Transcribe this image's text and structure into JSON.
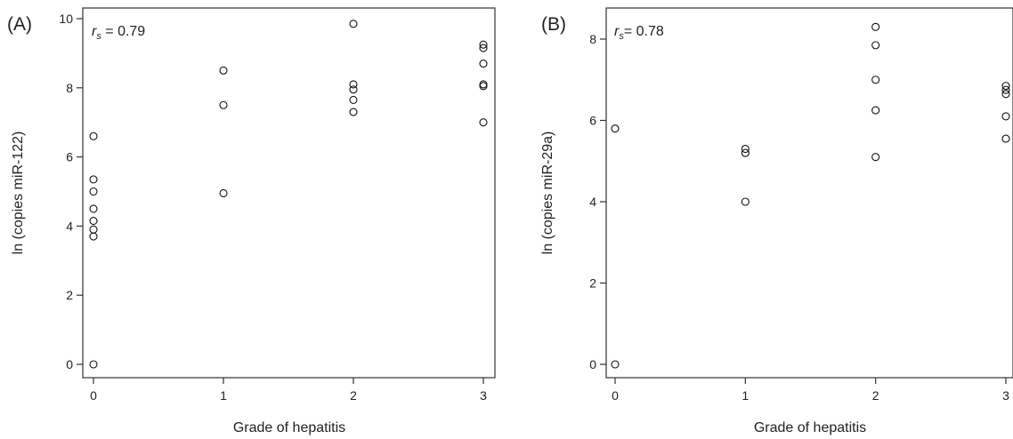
{
  "chart_data": [
    {
      "type": "scatter",
      "panel_label": "(A)",
      "xlabel": "Grade of hepatitis",
      "ylabel": "ln (copies miR-122)",
      "annotation": {
        "symbol": "r",
        "subscript": "s",
        "text": " = 0.79"
      },
      "xlim": [
        0,
        3
      ],
      "ylim": [
        0,
        10
      ],
      "xticks": [
        0,
        1,
        2,
        3
      ],
      "yticks": [
        0,
        2,
        4,
        6,
        8,
        10
      ],
      "grid": false,
      "points": [
        {
          "x": 0,
          "y": 0.0
        },
        {
          "x": 0,
          "y": 3.7
        },
        {
          "x": 0,
          "y": 3.9
        },
        {
          "x": 0,
          "y": 4.15
        },
        {
          "x": 0,
          "y": 4.5
        },
        {
          "x": 0,
          "y": 5.0
        },
        {
          "x": 0,
          "y": 5.35
        },
        {
          "x": 0,
          "y": 6.6
        },
        {
          "x": 1,
          "y": 4.95
        },
        {
          "x": 1,
          "y": 7.5
        },
        {
          "x": 1,
          "y": 8.5
        },
        {
          "x": 2,
          "y": 7.3
        },
        {
          "x": 2,
          "y": 7.65
        },
        {
          "x": 2,
          "y": 7.95
        },
        {
          "x": 2,
          "y": 8.1
        },
        {
          "x": 2,
          "y": 9.85
        },
        {
          "x": 3,
          "y": 7.0
        },
        {
          "x": 3,
          "y": 8.05
        },
        {
          "x": 3,
          "y": 8.1
        },
        {
          "x": 3,
          "y": 8.7
        },
        {
          "x": 3,
          "y": 9.15
        },
        {
          "x": 3,
          "y": 9.25
        }
      ]
    },
    {
      "type": "scatter",
      "panel_label": "(B)",
      "xlabel": "Grade of hepatitis",
      "ylabel": "ln (copies miR-29a)",
      "annotation": {
        "symbol": "r",
        "subscript": "s",
        "text": "= 0.78"
      },
      "xlim": [
        0,
        3
      ],
      "ylim": [
        0,
        8
      ],
      "xticks": [
        0,
        1,
        2,
        3
      ],
      "yticks": [
        0,
        2,
        4,
        6,
        8
      ],
      "grid": false,
      "points": [
        {
          "x": 0,
          "y": 0.0
        },
        {
          "x": 0,
          "y": 5.8
        },
        {
          "x": 1,
          "y": 4.0
        },
        {
          "x": 1,
          "y": 5.2
        },
        {
          "x": 1,
          "y": 5.3
        },
        {
          "x": 2,
          "y": 5.1
        },
        {
          "x": 2,
          "y": 6.25
        },
        {
          "x": 2,
          "y": 7.0
        },
        {
          "x": 2,
          "y": 7.85
        },
        {
          "x": 2,
          "y": 8.3
        },
        {
          "x": 3,
          "y": 5.55
        },
        {
          "x": 3,
          "y": 6.1
        },
        {
          "x": 3,
          "y": 6.65
        },
        {
          "x": 3,
          "y": 6.75
        },
        {
          "x": 3,
          "y": 6.85
        }
      ]
    }
  ]
}
